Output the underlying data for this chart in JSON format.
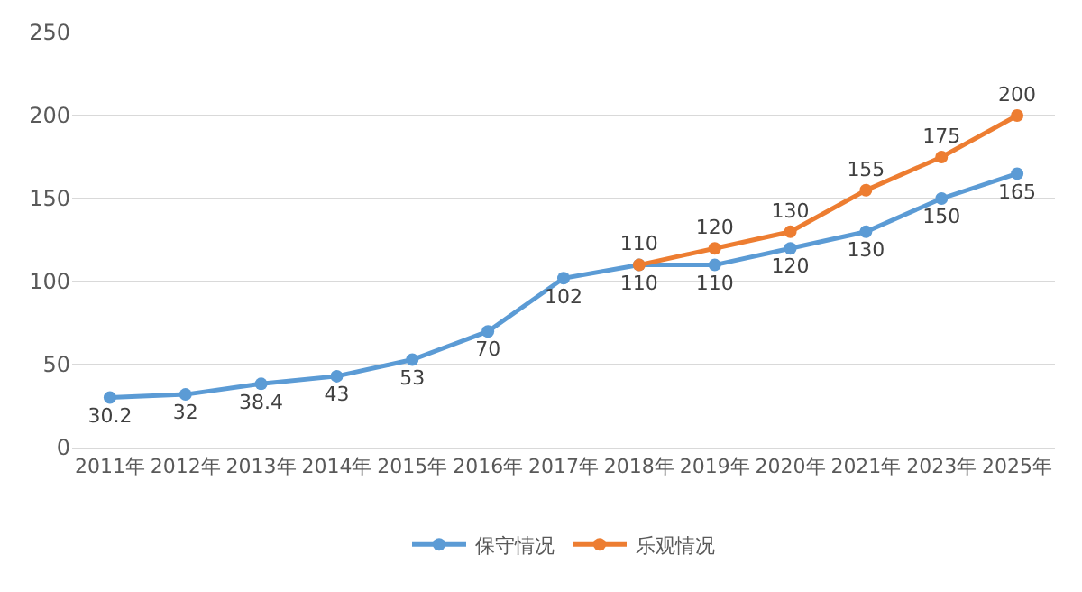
{
  "chart_data": {
    "type": "line",
    "categories": [
      "2011年",
      "2012年",
      "2013年",
      "2014年",
      "2015年",
      "2016年",
      "2017年",
      "2018年",
      "2019年",
      "2020年",
      "2021年",
      "2023年",
      "2025年"
    ],
    "series": [
      {
        "name": "保守情况",
        "color": "#5b9bd5",
        "values": [
          30.2,
          32,
          38.4,
          43,
          53,
          70,
          102,
          110,
          110,
          120,
          130,
          150,
          165
        ]
      },
      {
        "name": "乐观情况",
        "color": "#ed7d31",
        "values": [
          null,
          null,
          null,
          null,
          null,
          null,
          null,
          110,
          120,
          130,
          155,
          175,
          200
        ]
      }
    ],
    "ylim": [
      0,
      250
    ],
    "yticks": [
      0,
      50,
      100,
      150,
      200,
      250
    ],
    "grid": "y",
    "legend": "bottom",
    "marker": "circle",
    "line_style": "solid",
    "data_labels": true
  }
}
